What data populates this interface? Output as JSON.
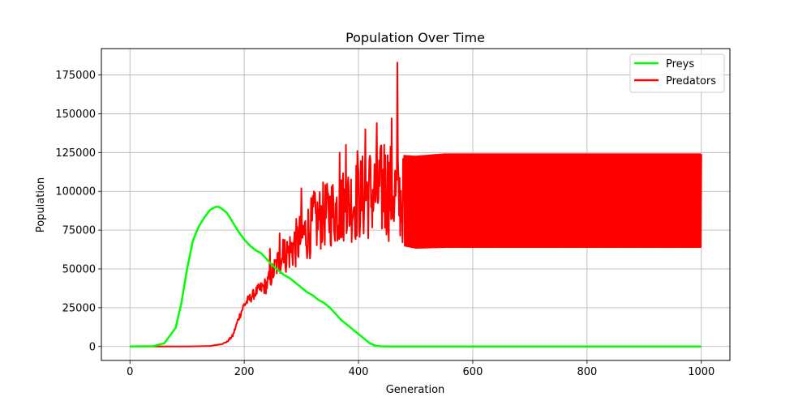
{
  "chart_data": {
    "type": "line",
    "title": "Population Over Time",
    "xlabel": "Generation",
    "ylabel": "Population",
    "xlim": [
      -50,
      1050
    ],
    "ylim": [
      -9000,
      192000
    ],
    "xticks": [
      0,
      200,
      400,
      600,
      800,
      1000
    ],
    "yticks": [
      0,
      25000,
      50000,
      75000,
      100000,
      125000,
      150000,
      175000
    ],
    "xtick_labels": [
      "0",
      "200",
      "400",
      "600",
      "800",
      "1000"
    ],
    "ytick_labels": [
      "0",
      "25000",
      "50000",
      "75000",
      "100000",
      "125000",
      "150000",
      "175000"
    ],
    "grid": true,
    "legend_position": "top-right",
    "series": [
      {
        "name": "Preys",
        "color": "#00ff00",
        "x": [
          0,
          40,
          60,
          80,
          90,
          100,
          110,
          120,
          130,
          140,
          150,
          155,
          160,
          170,
          180,
          190,
          200,
          210,
          220,
          230,
          240,
          250,
          260,
          270,
          280,
          290,
          300,
          310,
          320,
          330,
          340,
          350,
          360,
          370,
          380,
          390,
          400,
          410,
          420,
          430,
          440,
          450,
          460,
          480,
          500,
          600,
          800,
          1000
        ],
        "values": [
          0,
          200,
          2000,
          12000,
          28000,
          50000,
          68000,
          77000,
          83000,
          88000,
          90000,
          90000,
          89000,
          86000,
          80000,
          74000,
          69000,
          65000,
          62000,
          60000,
          56000,
          52000,
          49000,
          46000,
          44000,
          41000,
          38000,
          35000,
          33000,
          30000,
          28000,
          25000,
          21000,
          17000,
          14000,
          11000,
          8000,
          5000,
          2000,
          500,
          100,
          0,
          0,
          0,
          0,
          0,
          0,
          0
        ]
      },
      {
        "name": "Predators",
        "color": "#ff0000",
        "anchors_x": [
          0,
          100,
          140,
          160,
          170,
          180,
          190,
          200,
          220,
          240,
          260,
          280,
          300,
          320,
          340,
          360,
          380,
          400,
          420,
          440,
          460,
          470,
          480,
          500,
          550,
          600,
          700,
          800,
          900,
          1000
        ],
        "anchors_mean": [
          0,
          0,
          300,
          1500,
          3000,
          7000,
          18000,
          27000,
          35000,
          40000,
          55000,
          62000,
          70000,
          78000,
          85000,
          88000,
          92000,
          95000,
          98000,
          100000,
          102000,
          95000,
          94000,
          93000,
          94000,
          94000,
          94000,
          94000,
          94000,
          94000
        ],
        "anchors_amp": [
          0,
          0,
          0,
          200,
          500,
          1000,
          2000,
          3000,
          3500,
          6000,
          10000,
          14000,
          18000,
          20000,
          22000,
          24000,
          26000,
          28000,
          30000,
          32000,
          35000,
          29000,
          29000,
          29500,
          30000,
          30000,
          30000,
          30000,
          30000,
          30000
        ],
        "spikes_x": [
          245,
          262,
          268,
          300,
          322,
          345,
          367,
          378,
          398,
          412,
          420,
          432,
          445,
          458,
          468
        ],
        "spikes_y": [
          63000,
          73000,
          69000,
          102000,
          100000,
          105000,
          125000,
          130000,
          126000,
          140000,
          123000,
          144000,
          130000,
          147000,
          183000
        ]
      }
    ]
  }
}
